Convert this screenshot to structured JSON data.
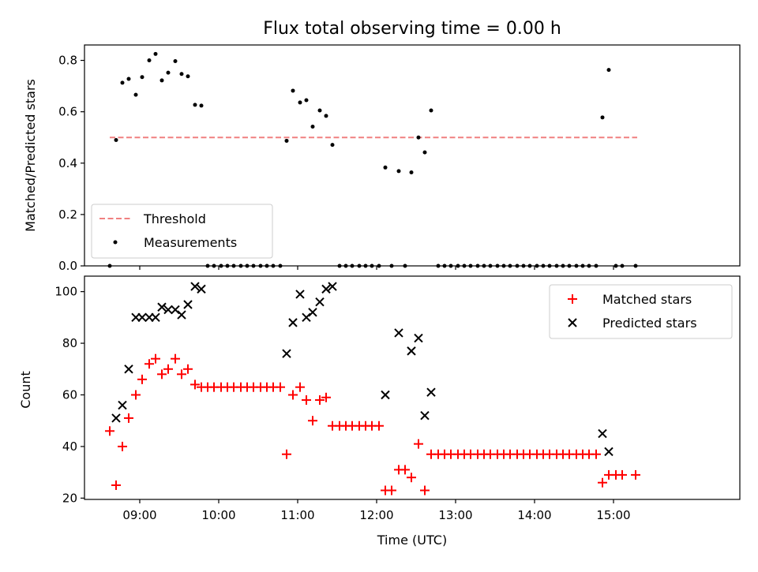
{
  "chart_data": [
    {
      "type": "scatter",
      "title": "Flux total observing time = 0.00 h",
      "ylabel": "Matched/Predicted stars",
      "xlabel": "",
      "xlim": [
        8.3,
        16.6
      ],
      "ylim": [
        0.0,
        0.86
      ],
      "yticks": [
        0.0,
        0.2,
        0.4,
        0.6,
        0.8
      ],
      "ytick_labels": [
        "0.0",
        "0.2",
        "0.4",
        "0.6",
        "0.8"
      ],
      "xticks": [
        9,
        10,
        11,
        12,
        13,
        14,
        15
      ],
      "legend": {
        "placement": "lower-left",
        "entries": [
          "Threshold",
          "Measurements"
        ]
      },
      "series": [
        {
          "name": "Threshold",
          "kind": "dashed-line",
          "color": "#f08080",
          "x": [
            8.62,
            15.3
          ],
          "y": [
            0.5,
            0.5
          ]
        },
        {
          "name": "Measurements",
          "kind": "dots",
          "color": "#000000",
          "points": [
            [
              8.62,
              0.0
            ],
            [
              8.7,
              0.49
            ],
            [
              8.78,
              0.713
            ],
            [
              8.86,
              0.728
            ],
            [
              8.95,
              0.666
            ],
            [
              9.03,
              0.735
            ],
            [
              9.12,
              0.8
            ],
            [
              9.2,
              0.825
            ],
            [
              9.28,
              0.722
            ],
            [
              9.36,
              0.752
            ],
            [
              9.45,
              0.797
            ],
            [
              9.53,
              0.747
            ],
            [
              9.61,
              0.738
            ],
            [
              9.7,
              0.627
            ],
            [
              9.78,
              0.624
            ],
            [
              9.86,
              0.0
            ],
            [
              9.94,
              0.0
            ],
            [
              10.03,
              0.0
            ],
            [
              10.11,
              0.0
            ],
            [
              10.19,
              0.0
            ],
            [
              10.28,
              0.0
            ],
            [
              10.36,
              0.0
            ],
            [
              10.44,
              0.0
            ],
            [
              10.53,
              0.0
            ],
            [
              10.61,
              0.0
            ],
            [
              10.69,
              0.0
            ],
            [
              10.78,
              0.0
            ],
            [
              10.86,
              0.487
            ],
            [
              10.94,
              0.682
            ],
            [
              11.03,
              0.636
            ],
            [
              11.11,
              0.645
            ],
            [
              11.19,
              0.542
            ],
            [
              11.28,
              0.605
            ],
            [
              11.36,
              0.584
            ],
            [
              11.44,
              0.471
            ],
            [
              11.53,
              0.0
            ],
            [
              11.61,
              0.0
            ],
            [
              11.69,
              0.0
            ],
            [
              11.78,
              0.0
            ],
            [
              11.86,
              0.0
            ],
            [
              11.94,
              0.0
            ],
            [
              12.03,
              0.0
            ],
            [
              12.11,
              0.383
            ],
            [
              12.19,
              0.0
            ],
            [
              12.28,
              0.369
            ],
            [
              12.36,
              0.0
            ],
            [
              12.44,
              0.364
            ],
            [
              12.53,
              0.5
            ],
            [
              12.61,
              0.442
            ],
            [
              12.69,
              0.605
            ],
            [
              12.78,
              0.0
            ],
            [
              12.86,
              0.0
            ],
            [
              12.94,
              0.0
            ],
            [
              13.03,
              0.0
            ],
            [
              13.11,
              0.0
            ],
            [
              13.19,
              0.0
            ],
            [
              13.28,
              0.0
            ],
            [
              13.36,
              0.0
            ],
            [
              13.44,
              0.0
            ],
            [
              13.53,
              0.0
            ],
            [
              13.61,
              0.0
            ],
            [
              13.69,
              0.0
            ],
            [
              13.78,
              0.0
            ],
            [
              13.86,
              0.0
            ],
            [
              13.94,
              0.0
            ],
            [
              14.03,
              0.0
            ],
            [
              14.11,
              0.0
            ],
            [
              14.19,
              0.0
            ],
            [
              14.28,
              0.0
            ],
            [
              14.36,
              0.0
            ],
            [
              14.44,
              0.0
            ],
            [
              14.53,
              0.0
            ],
            [
              14.61,
              0.0
            ],
            [
              14.69,
              0.0
            ],
            [
              14.78,
              0.0
            ],
            [
              14.86,
              0.578
            ],
            [
              14.94,
              0.763
            ],
            [
              15.03,
              0.0
            ],
            [
              15.11,
              0.0
            ],
            [
              15.28,
              0.0
            ]
          ]
        }
      ]
    },
    {
      "type": "scatter",
      "xlabel": "Time (UTC)",
      "ylabel": "Count",
      "xlim": [
        8.3,
        16.6
      ],
      "ylim": [
        19.5,
        106
      ],
      "yticks": [
        20,
        40,
        60,
        80,
        100
      ],
      "ytick_labels": [
        "20",
        "40",
        "60",
        "80",
        "100"
      ],
      "xticks": [
        9,
        10,
        11,
        12,
        13,
        14,
        15
      ],
      "xtick_labels": [
        "09:00",
        "10:00",
        "11:00",
        "12:00",
        "13:00",
        "14:00",
        "15:00"
      ],
      "legend": {
        "placement": "upper-right",
        "entries": [
          "Matched stars",
          "Predicted stars"
        ]
      },
      "series": [
        {
          "name": "Matched stars",
          "marker": "plus",
          "color": "#ff0000",
          "points": [
            [
              8.62,
              46
            ],
            [
              8.7,
              25
            ],
            [
              8.78,
              40
            ],
            [
              8.86,
              51
            ],
            [
              8.95,
              60
            ],
            [
              9.03,
              66
            ],
            [
              9.12,
              72
            ],
            [
              9.2,
              74
            ],
            [
              9.28,
              68
            ],
            [
              9.36,
              70
            ],
            [
              9.45,
              74
            ],
            [
              9.53,
              68
            ],
            [
              9.61,
              70
            ],
            [
              9.7,
              64
            ],
            [
              9.78,
              63
            ],
            [
              9.86,
              63
            ],
            [
              9.94,
              63
            ],
            [
              10.03,
              63
            ],
            [
              10.11,
              63
            ],
            [
              10.19,
              63
            ],
            [
              10.28,
              63
            ],
            [
              10.36,
              63
            ],
            [
              10.44,
              63
            ],
            [
              10.53,
              63
            ],
            [
              10.61,
              63
            ],
            [
              10.69,
              63
            ],
            [
              10.78,
              63
            ],
            [
              10.86,
              37
            ],
            [
              10.94,
              60
            ],
            [
              11.03,
              63
            ],
            [
              11.11,
              58
            ],
            [
              11.19,
              50
            ],
            [
              11.28,
              58
            ],
            [
              11.36,
              59
            ],
            [
              11.44,
              48
            ],
            [
              11.53,
              48
            ],
            [
              11.61,
              48
            ],
            [
              11.69,
              48
            ],
            [
              11.78,
              48
            ],
            [
              11.86,
              48
            ],
            [
              11.94,
              48
            ],
            [
              12.03,
              48
            ],
            [
              12.11,
              23
            ],
            [
              12.19,
              23
            ],
            [
              12.28,
              31
            ],
            [
              12.36,
              31
            ],
            [
              12.44,
              28
            ],
            [
              12.53,
              41
            ],
            [
              12.61,
              23
            ],
            [
              12.69,
              37
            ],
            [
              12.78,
              37
            ],
            [
              12.86,
              37
            ],
            [
              12.94,
              37
            ],
            [
              13.03,
              37
            ],
            [
              13.11,
              37
            ],
            [
              13.19,
              37
            ],
            [
              13.28,
              37
            ],
            [
              13.36,
              37
            ],
            [
              13.44,
              37
            ],
            [
              13.53,
              37
            ],
            [
              13.61,
              37
            ],
            [
              13.69,
              37
            ],
            [
              13.78,
              37
            ],
            [
              13.86,
              37
            ],
            [
              13.94,
              37
            ],
            [
              14.03,
              37
            ],
            [
              14.11,
              37
            ],
            [
              14.19,
              37
            ],
            [
              14.28,
              37
            ],
            [
              14.36,
              37
            ],
            [
              14.44,
              37
            ],
            [
              14.53,
              37
            ],
            [
              14.61,
              37
            ],
            [
              14.69,
              37
            ],
            [
              14.78,
              37
            ],
            [
              14.86,
              26
            ],
            [
              14.94,
              29
            ],
            [
              15.03,
              29
            ],
            [
              15.11,
              29
            ],
            [
              15.28,
              29
            ]
          ]
        },
        {
          "name": "Predicted stars",
          "marker": "x",
          "color": "#000000",
          "points": [
            [
              8.7,
              51
            ],
            [
              8.78,
              56
            ],
            [
              8.86,
              70
            ],
            [
              8.95,
              90
            ],
            [
              9.03,
              90
            ],
            [
              9.12,
              90
            ],
            [
              9.2,
              90
            ],
            [
              9.28,
              94
            ],
            [
              9.36,
              93
            ],
            [
              9.45,
              93
            ],
            [
              9.53,
              91
            ],
            [
              9.61,
              95
            ],
            [
              9.7,
              102
            ],
            [
              9.78,
              101
            ],
            [
              10.86,
              76
            ],
            [
              10.94,
              88
            ],
            [
              11.03,
              99
            ],
            [
              11.11,
              90
            ],
            [
              11.19,
              92
            ],
            [
              11.28,
              96
            ],
            [
              11.36,
              101
            ],
            [
              11.44,
              102
            ],
            [
              12.11,
              60
            ],
            [
              12.28,
              84
            ],
            [
              12.44,
              77
            ],
            [
              12.53,
              82
            ],
            [
              12.61,
              52
            ],
            [
              12.69,
              61
            ],
            [
              14.86,
              45
            ],
            [
              14.94,
              38
            ]
          ]
        }
      ]
    }
  ]
}
